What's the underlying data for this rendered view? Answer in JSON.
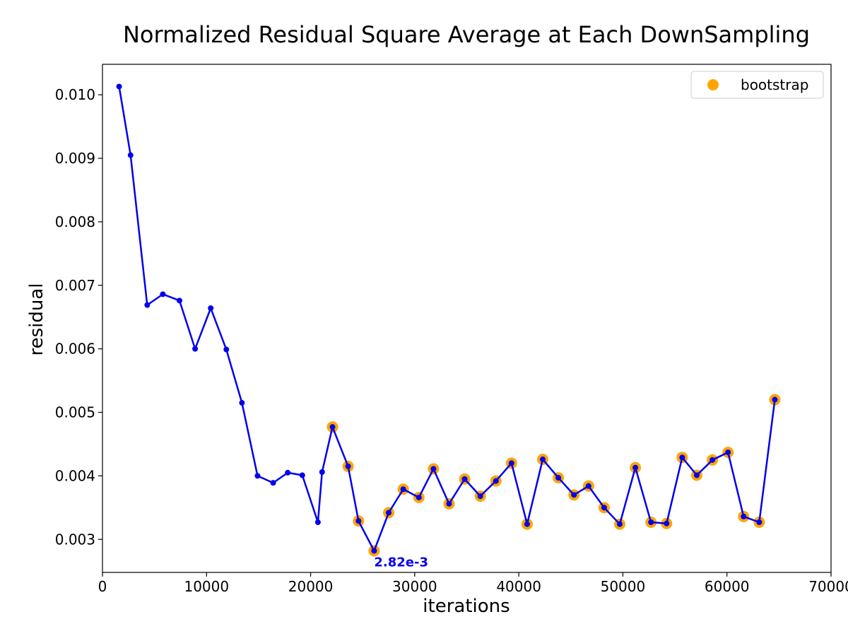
{
  "chart_data": {
    "type": "line",
    "title": "Normalized Residual Square Average at Each DownSampling",
    "xlabel": "iterations",
    "ylabel": "residual",
    "xlim": [
      0,
      70000
    ],
    "ylim": [
      0.00248,
      0.01048
    ],
    "xticks": [
      0,
      10000,
      20000,
      30000,
      40000,
      50000,
      60000,
      70000
    ],
    "xtick_labels": [
      "0",
      "10000",
      "20000",
      "30000",
      "40000",
      "50000",
      "60000",
      "70000"
    ],
    "yticks": [
      0.003,
      0.004,
      0.005,
      0.006,
      0.007,
      0.008,
      0.009,
      0.01
    ],
    "ytick_labels": [
      "0.003",
      "0.004",
      "0.005",
      "0.006",
      "0.007",
      "0.008",
      "0.009",
      "0.010"
    ],
    "grid": false,
    "legend": {
      "position": "top-right",
      "entries": [
        "bootstrap"
      ]
    },
    "colors": {
      "line": "#0000ee",
      "marker": "#0000ee",
      "bootstrap": "#ffa500",
      "annotation": "#0000ee"
    },
    "series": [
      {
        "style": "line-with-markers",
        "points": [
          [
            1600,
            0.01013
          ],
          [
            2700,
            0.00905
          ],
          [
            4300,
            0.00669
          ],
          [
            5800,
            0.00686
          ],
          [
            7400,
            0.00676
          ],
          [
            8900,
            0.006
          ],
          [
            10400,
            0.00664
          ],
          [
            11900,
            0.00599
          ],
          [
            13400,
            0.00515
          ],
          [
            14900,
            0.004
          ],
          [
            16400,
            0.00389
          ],
          [
            17800,
            0.00405
          ],
          [
            19200,
            0.00401
          ],
          [
            20700,
            0.00327
          ],
          [
            21100,
            0.00406
          ],
          [
            22100,
            0.00477
          ],
          [
            23600,
            0.00415
          ],
          [
            24600,
            0.00329
          ],
          [
            26100,
            0.00282
          ],
          [
            27500,
            0.00342
          ],
          [
            28900,
            0.00379
          ],
          [
            30400,
            0.00366
          ],
          [
            31800,
            0.00411
          ],
          [
            33300,
            0.00356
          ],
          [
            34800,
            0.00395
          ],
          [
            36300,
            0.00368
          ],
          [
            37800,
            0.00392
          ],
          [
            39300,
            0.0042
          ],
          [
            40800,
            0.00324
          ],
          [
            42300,
            0.00426
          ],
          [
            43800,
            0.00397
          ],
          [
            45300,
            0.0037
          ],
          [
            46700,
            0.00384
          ],
          [
            48200,
            0.0035
          ],
          [
            49700,
            0.00324
          ],
          [
            51200,
            0.00413
          ],
          [
            52700,
            0.00327
          ],
          [
            54200,
            0.00325
          ],
          [
            55700,
            0.00429
          ],
          [
            57100,
            0.00401
          ],
          [
            58600,
            0.00425
          ],
          [
            60100,
            0.00437
          ],
          [
            61600,
            0.00336
          ],
          [
            63100,
            0.00327
          ],
          [
            64600,
            0.0052
          ]
        ]
      },
      {
        "name": "bootstrap",
        "style": "scatter",
        "points": [
          [
            22100,
            0.00477
          ],
          [
            23600,
            0.00415
          ],
          [
            24600,
            0.00329
          ],
          [
            26100,
            0.00282
          ],
          [
            27500,
            0.00342
          ],
          [
            28900,
            0.00379
          ],
          [
            30400,
            0.00366
          ],
          [
            31800,
            0.00411
          ],
          [
            33300,
            0.00356
          ],
          [
            34800,
            0.00395
          ],
          [
            36300,
            0.00368
          ],
          [
            37800,
            0.00392
          ],
          [
            39300,
            0.0042
          ],
          [
            40800,
            0.00324
          ],
          [
            42300,
            0.00426
          ],
          [
            43800,
            0.00397
          ],
          [
            45300,
            0.0037
          ],
          [
            46700,
            0.00384
          ],
          [
            48200,
            0.0035
          ],
          [
            49700,
            0.00324
          ],
          [
            51200,
            0.00413
          ],
          [
            52700,
            0.00327
          ],
          [
            54200,
            0.00325
          ],
          [
            55700,
            0.00429
          ],
          [
            57100,
            0.00401
          ],
          [
            58600,
            0.00425
          ],
          [
            60100,
            0.00437
          ],
          [
            61600,
            0.00336
          ],
          [
            63100,
            0.00327
          ],
          [
            64600,
            0.0052
          ]
        ]
      }
    ],
    "annotations": [
      {
        "text": "2.82e-3",
        "x": 26100,
        "y": 0.00282
      }
    ]
  }
}
